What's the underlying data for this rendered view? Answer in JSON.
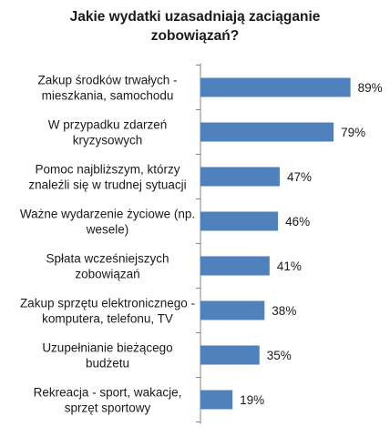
{
  "chart_data": {
    "type": "bar",
    "orientation": "horizontal",
    "title_lines": [
      "Jakie wydatki uzasadniają zaciąganie",
      "zobowiązań?"
    ],
    "categories": [
      [
        "Zakup środków trwałych -",
        "mieszkania, samochodu"
      ],
      [
        "W przypadku zdarzeń",
        "kryzysowych"
      ],
      [
        "Pomoc najbliższym, którzy",
        "znaleźli się w trudnej sytuacji"
      ],
      [
        "Ważne wydarzenie życiowe (np.",
        "wesele)"
      ],
      [
        "Spłata wcześniejszych",
        "zobowiązań"
      ],
      [
        "Zakup sprzętu elektronicznego -",
        "komputera, telefonu, TV"
      ],
      [
        "Uzupełnianie bieżącego",
        "budżetu"
      ],
      [
        "Rekreacja - sport, wakacje,",
        "sprzęt sportowy"
      ]
    ],
    "values": [
      89,
      79,
      47,
      46,
      41,
      38,
      35,
      19
    ],
    "value_labels": [
      "89%",
      "79%",
      "47%",
      "46%",
      "41%",
      "38%",
      "35%",
      "19%"
    ],
    "xlim": [
      0,
      100
    ],
    "bar_color": "#4f81bd",
    "axis_color": "#868686",
    "grid": false,
    "legend": "none"
  }
}
